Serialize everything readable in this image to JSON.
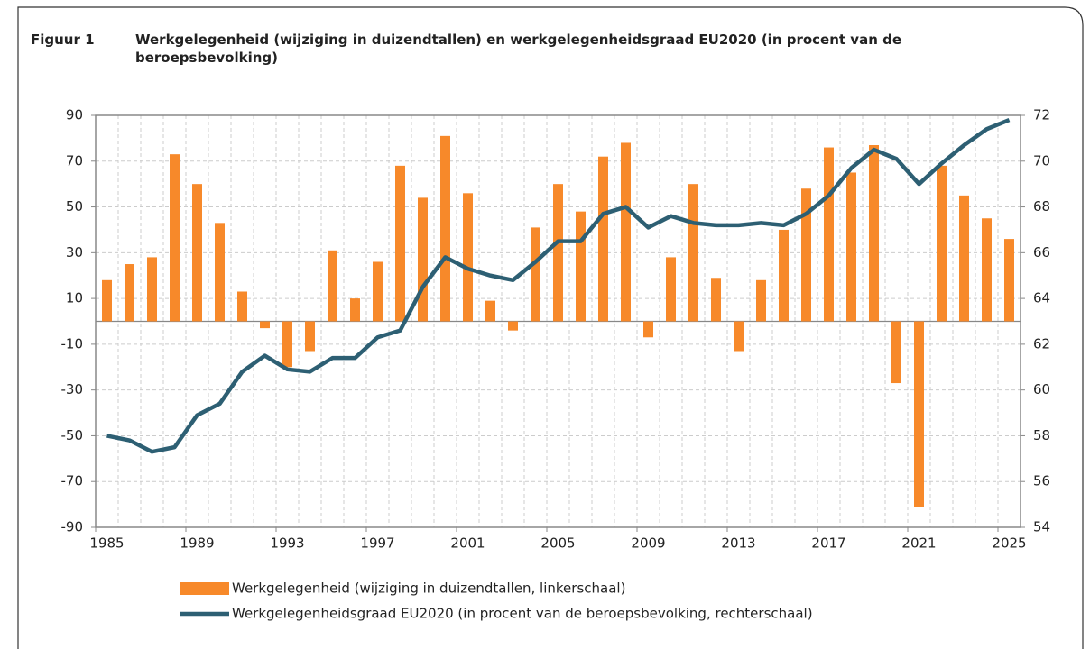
{
  "chart_data": {
    "type": "bar-line",
    "figure_label": "Figuur 1",
    "title": "Werkgelegenheid (wijziging in duizendtallen) en werkgelegenheidsgraad EU2020 (in procent van de beroepsbevolking)",
    "x": [
      1985,
      1986,
      1987,
      1988,
      1989,
      1990,
      1991,
      1992,
      1993,
      1994,
      1995,
      1996,
      1997,
      1998,
      1999,
      2000,
      2001,
      2002,
      2003,
      2004,
      2005,
      2006,
      2007,
      2008,
      2009,
      2010,
      2011,
      2012,
      2013,
      2014,
      2015,
      2016,
      2017,
      2018,
      2019,
      2020,
      2021,
      2022,
      2023,
      2024,
      2025
    ],
    "xlim": [
      1984.5,
      2025.5
    ],
    "xticks": [
      1985,
      1989,
      1993,
      1997,
      2001,
      2005,
      2009,
      2013,
      2017,
      2021,
      2025
    ],
    "ylim": [
      -90,
      90
    ],
    "yticks": [
      90,
      70,
      50,
      30,
      10,
      -10,
      -30,
      -50,
      -70,
      -90
    ],
    "y2lim": [
      54,
      72
    ],
    "y2ticks": [
      72,
      70,
      68,
      66,
      64,
      62,
      60,
      58,
      56,
      54
    ],
    "grid": true,
    "series": [
      {
        "name": "Werkgelegenheid (wijziging in duizendtallen, linkerschaal)",
        "type": "bar",
        "color": "#f7892a",
        "axis": "y",
        "values": [
          18,
          25,
          28,
          73,
          60,
          43,
          13,
          -3,
          -20,
          -13,
          31,
          10,
          26,
          68,
          54,
          81,
          56,
          9,
          -4,
          41,
          60,
          48,
          72,
          78,
          -7,
          28,
          60,
          19,
          -13,
          18,
          40,
          58,
          76,
          65,
          77,
          -27,
          -81,
          68,
          55,
          45,
          36
        ]
      },
      {
        "name": "Werkgelegenheidsgraad EU2020 (in procent van de beroepsbevolking, rechterschaal)",
        "type": "line",
        "color": "#2d5f73",
        "axis": "y2",
        "values": [
          58.0,
          57.8,
          57.3,
          57.5,
          58.9,
          59.4,
          60.8,
          61.5,
          60.9,
          60.8,
          61.4,
          61.4,
          62.3,
          62.6,
          64.5,
          65.8,
          65.3,
          65.0,
          64.8,
          65.6,
          66.5,
          66.5,
          67.7,
          68.0,
          67.1,
          67.6,
          67.3,
          67.2,
          67.2,
          67.3,
          67.2,
          67.7,
          68.5,
          69.7,
          70.5,
          70.1,
          69.0,
          69.9,
          70.7,
          71.4,
          71.8
        ]
      }
    ]
  }
}
